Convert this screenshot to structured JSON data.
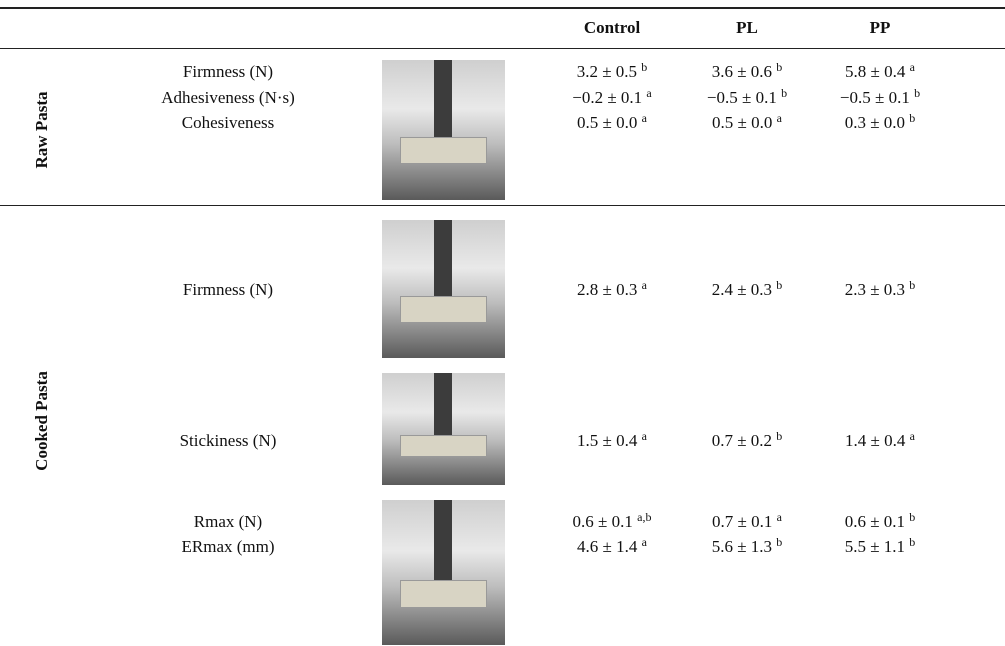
{
  "header": {
    "columns": [
      "Control",
      "PL",
      "PP"
    ]
  },
  "sections": [
    {
      "label": "Raw Pasta",
      "groups": [
        {
          "properties": [
            {
              "name": "Firmness (N)",
              "values": [
                {
                  "text": "3.2 ± 0.5",
                  "sup": "b"
                },
                {
                  "text": "3.6 ± 0.6",
                  "sup": "b"
                },
                {
                  "text": "5.8 ± 0.4",
                  "sup": "a"
                }
              ]
            },
            {
              "name": "Adhesiveness (N·s)",
              "values": [
                {
                  "text": "−0.2 ± 0.1",
                  "sup": "a"
                },
                {
                  "text": "−0.5 ± 0.1",
                  "sup": "b"
                },
                {
                  "text": "−0.5 ± 0.1",
                  "sup": "b"
                }
              ]
            },
            {
              "name": "Cohesiveness",
              "values": [
                {
                  "text": "0.5 ± 0.0",
                  "sup": "a"
                },
                {
                  "text": "0.5 ± 0.0",
                  "sup": "a"
                },
                {
                  "text": "0.3 ± 0.0",
                  "sup": "b"
                }
              ]
            }
          ]
        }
      ]
    },
    {
      "label": "Cooked Pasta",
      "groups": [
        {
          "properties": [
            {
              "name": "Firmness (N)",
              "values": [
                {
                  "text": "2.8 ± 0.3",
                  "sup": "a"
                },
                {
                  "text": "2.4 ± 0.3",
                  "sup": "b"
                },
                {
                  "text": "2.3 ± 0.3",
                  "sup": "b"
                }
              ]
            }
          ]
        },
        {
          "properties": [
            {
              "name": "Stickiness (N)",
              "values": [
                {
                  "text": "1.5 ± 0.4",
                  "sup": "a"
                },
                {
                  "text": "0.7 ± 0.2",
                  "sup": "b"
                },
                {
                  "text": "1.4 ± 0.4",
                  "sup": "a"
                }
              ]
            }
          ]
        },
        {
          "properties": [
            {
              "name": "Rmax (N)",
              "values": [
                {
                  "text": "0.6 ± 0.1",
                  "sup": "a,b"
                },
                {
                  "text": "0.7 ± 0.1",
                  "sup": "a"
                },
                {
                  "text": "0.6 ± 0.1",
                  "sup": "b"
                }
              ]
            },
            {
              "name": "ERmax (mm)",
              "values": [
                {
                  "text": "4.6 ± 1.4",
                  "sup": "a"
                },
                {
                  "text": "5.6 ± 1.3",
                  "sup": "b"
                },
                {
                  "text": "5.5 ± 1.1",
                  "sup": "b"
                }
              ]
            }
          ]
        }
      ]
    }
  ]
}
